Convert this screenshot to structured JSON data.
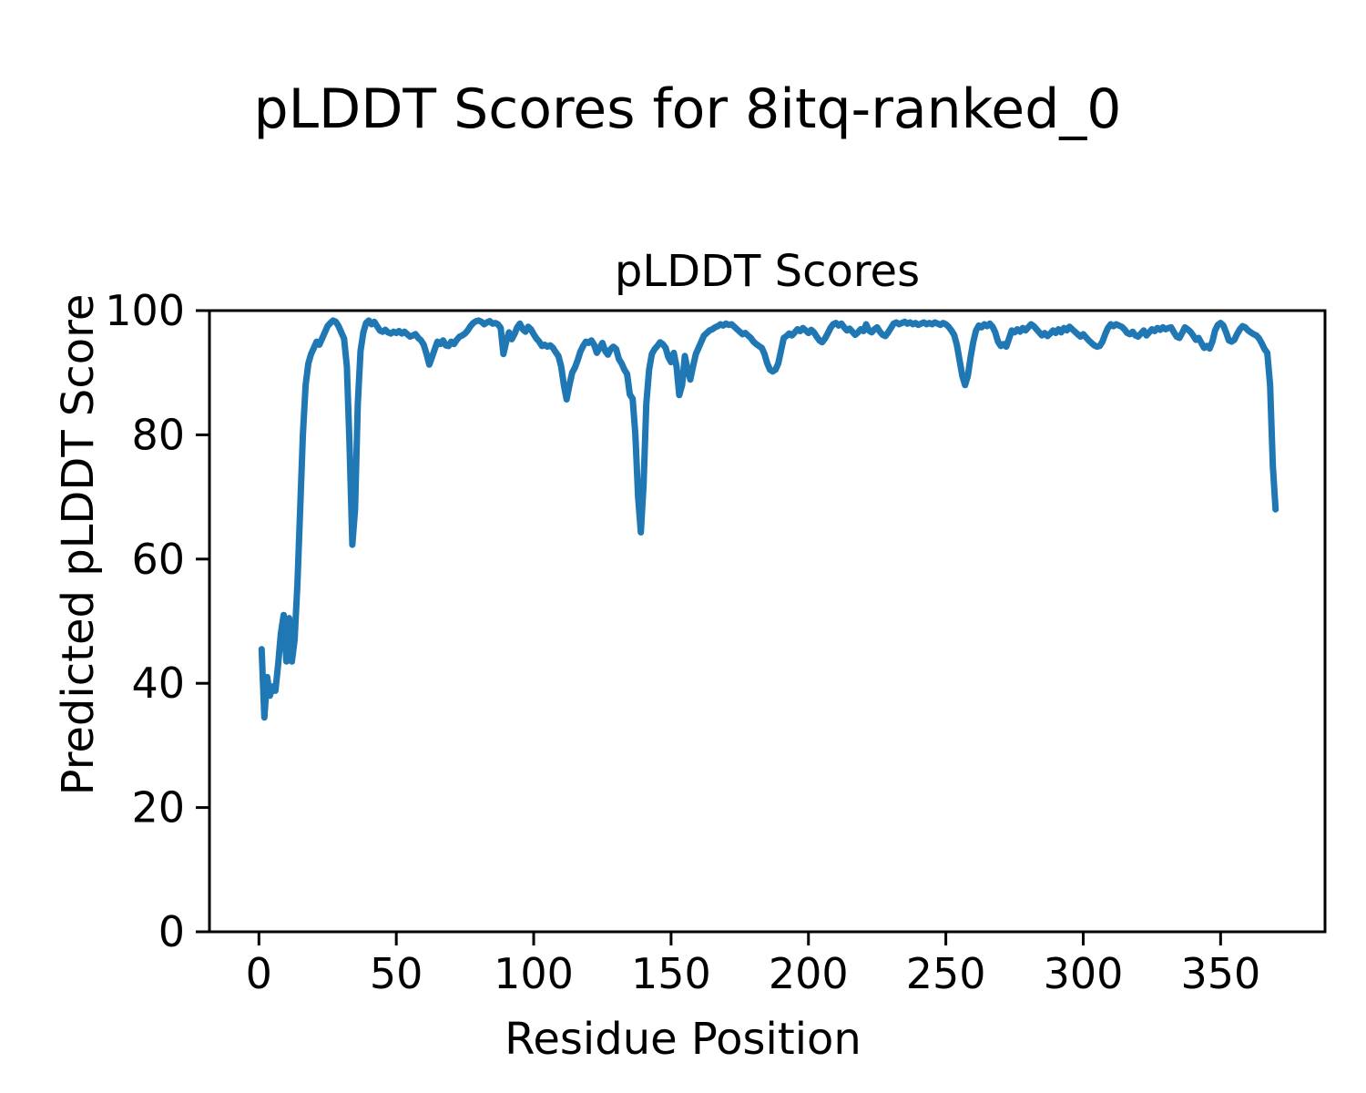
{
  "chart_data": {
    "type": "line",
    "title": "pLDDT Scores for 8itq-ranked_0",
    "axes_title": "pLDDT Scores",
    "xlabel": "Residue Position",
    "ylabel": "Predicted pLDDT Score",
    "x_ticks": [
      0,
      50,
      100,
      150,
      200,
      250,
      300,
      350
    ],
    "y_ticks": [
      0,
      20,
      40,
      60,
      80,
      100
    ],
    "xlim": [
      -18,
      388
    ],
    "ylim": [
      0,
      100
    ],
    "grid": false,
    "legend": "none",
    "line_color": "#1f77b4",
    "frame_color": "#000000",
    "series": [
      {
        "name": "pLDDT",
        "x_start": 1,
        "x_step": 1,
        "values": [
          45.5,
          34.5,
          41,
          38,
          39.5,
          38.8,
          43,
          48,
          51,
          43.5,
          50.5,
          43.5,
          47,
          56,
          68,
          80,
          88,
          91.5,
          93,
          94,
          95,
          94.5,
          95.5,
          96.5,
          97.5,
          98,
          98.4,
          98.2,
          97.5,
          96.5,
          95.5,
          91,
          78,
          62.3,
          68,
          85,
          93.5,
          96.5,
          98,
          98.4,
          97.8,
          98.2,
          97.5,
          96.8,
          96.6,
          96.9,
          96.5,
          96.3,
          96.6,
          96.4,
          96.7,
          96.3,
          96.6,
          96.2,
          95.8,
          96,
          96.2,
          95.6,
          95.2,
          94.5,
          93,
          91.3,
          92.5,
          93.8,
          95,
          94.6,
          95.2,
          94.4,
          94.3,
          95,
          94.6,
          95.3,
          95.8,
          96,
          96.3,
          96.8,
          97.5,
          98,
          98.3,
          98.4,
          98.2,
          97.8,
          98.1,
          98.3,
          97.9,
          98,
          97.8,
          97.2,
          93,
          95,
          96.5,
          95.4,
          96.2,
          97.3,
          97.9,
          97,
          96.6,
          97.4,
          97,
          96.2,
          95.5,
          95,
          94.3,
          94.5,
          94.2,
          94.4,
          94,
          93.3,
          92.7,
          91,
          88,
          85.7,
          88,
          90,
          90.8,
          92,
          93.4,
          94.3,
          95,
          94.8,
          95.2,
          94.5,
          93.2,
          94,
          94.8,
          93.5,
          92.9,
          93.8,
          94.2,
          93.8,
          92.2,
          91.5,
          90.5,
          89.8,
          86.5,
          85.8,
          80,
          70,
          64.3,
          72,
          85,
          90.5,
          93,
          93.8,
          94.3,
          94.9,
          94.6,
          94,
          92.5,
          91.7,
          93.2,
          91,
          86.4,
          88,
          92.7,
          90.5,
          88.9,
          91,
          93,
          94,
          95,
          96,
          96.4,
          96.8,
          97,
          97.3,
          97.5,
          97.8,
          97.6,
          97.9,
          97.7,
          97.8,
          97.4,
          97,
          96.6,
          96.2,
          96.4,
          96,
          95.6,
          95,
          94.6,
          94.3,
          94,
          93,
          91.5,
          90.5,
          90.2,
          90.5,
          91.5,
          93.5,
          95.6,
          95.9,
          96.3,
          96,
          96.5,
          97,
          96.7,
          97.2,
          96.8,
          96.4,
          96.9,
          96.5,
          95.8,
          95.2,
          94.9,
          95.5,
          96.3,
          97.2,
          97.8,
          98,
          97.6,
          97.9,
          97.3,
          96.8,
          97.1,
          96.6,
          96.1,
          96.5,
          97,
          96.7,
          97.8,
          96.8,
          96.5,
          97,
          97.3,
          96.6,
          96.1,
          95.9,
          96.5,
          97.2,
          97.9,
          98.1,
          97.8,
          98,
          98.2,
          97.9,
          98.1,
          97.8,
          98,
          97.7,
          97.9,
          98.1,
          97.8,
          98,
          97.8,
          98.1,
          97.9,
          97.7,
          98,
          97.8,
          97.4,
          96.8,
          96.1,
          94.5,
          92,
          89.5,
          88,
          89.5,
          92.5,
          95,
          96.8,
          97.6,
          97.3,
          97.8,
          97.5,
          97.9,
          97.4,
          96.5,
          95,
          94.3,
          94.6,
          94.2,
          95.5,
          96.8,
          96.5,
          97,
          96.6,
          97.2,
          96.8,
          97.3,
          97.8,
          97.5,
          97,
          96.5,
          96,
          96.4,
          95.9,
          96.3,
          96.8,
          96.4,
          97,
          96.5,
          97.2,
          96.8,
          97.4,
          97,
          96.6,
          96.2,
          95.8,
          96.2,
          95.7,
          95.2,
          94.8,
          94.4,
          94.2,
          94.3,
          95,
          96.2,
          97.2,
          97.8,
          97.5,
          97.8,
          97.6,
          97.4,
          97,
          96.4,
          96.2,
          96.6,
          96,
          95.8,
          96.3,
          96.8,
          96,
          96.5,
          97,
          96.7,
          97.2,
          96.9,
          97.3,
          97,
          97.2,
          97.3,
          96.5,
          95.8,
          95.6,
          96.4,
          97.3,
          97,
          96.6,
          96,
          95.3,
          95.6,
          94.8,
          94,
          94.3,
          93.9,
          95,
          96.8,
          97.7,
          98,
          97.6,
          96.5,
          95.2,
          95,
          95.3,
          96.2,
          97,
          97.5,
          97.3,
          96.8,
          96.5,
          96.2,
          96,
          95.5,
          94.7,
          93.8,
          93.2,
          88,
          75,
          68
        ]
      }
    ]
  }
}
